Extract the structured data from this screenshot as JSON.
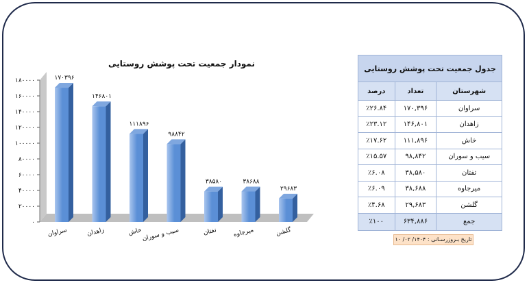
{
  "chart_data": {
    "type": "bar",
    "title": "نمودار جمعیت تحت پوشش روستایی",
    "categories": [
      "سراوان",
      "زاهدان",
      "خاش",
      "سیب و سوران",
      "تفتان",
      "میرجاوه",
      "گلشن"
    ],
    "values": [
      170396,
      146801,
      111896,
      98842,
      38580,
      38688,
      29683
    ],
    "value_labels": [
      "۱۷۰۳۹۶",
      "۱۴۶۸۰۱",
      "۱۱۱۸۹۶",
      "۹۸۸۴۲",
      "۳۸۵۸۰",
      "۳۸۶۸۸",
      "۲۹۶۸۳"
    ],
    "ylim": [
      0,
      180000
    ],
    "yticks": [
      0,
      20000,
      40000,
      60000,
      80000,
      100000,
      120000,
      140000,
      160000,
      180000
    ],
    "ytick_labels": [
      "۰",
      "۲۰۰۰۰",
      "۴۰۰۰۰",
      "۶۰۰۰۰",
      "۸۰۰۰۰",
      "۱۰۰۰۰۰",
      "۱۲۰۰۰۰",
      "۱۴۰۰۰۰",
      "۱۶۰۰۰۰",
      "۱۸۰۰۰۰"
    ],
    "grid": false,
    "colors": {
      "bar_front": "#5b8fd6",
      "bar_light": "#a9c5ee",
      "bar_side": "#34609f",
      "bar_top": "#7fa7df",
      "wall": "#c9c9c9",
      "floor": "#bfbfbf"
    }
  },
  "table": {
    "caption": "جدول جمعیت تحت پوشش روستایی",
    "headers": [
      "شهرستان",
      "تعداد",
      "درصد"
    ],
    "rows": [
      [
        "سراوان",
        "۱۷۰,۳۹۶",
        "٪۲۶.۸۴"
      ],
      [
        "زاهدان",
        "۱۴۶,۸۰۱",
        "٪۲۳.۱۲"
      ],
      [
        "خاش",
        "۱۱۱,۸۹۶",
        "٪۱۷.۶۲"
      ],
      [
        "سیب و سوران",
        "۹۸,۸۴۲",
        "٪۱۵.۵۷"
      ],
      [
        "تفتان",
        "۳۸,۵۸۰",
        "٪۶.۰۸"
      ],
      [
        "میرجاوه",
        "۳۸,۶۸۸",
        "٪۶.۰۹"
      ],
      [
        "گلشن",
        "۲۹,۶۸۳",
        "٪۴.۶۸"
      ]
    ],
    "total": [
      "جمع",
      "۶۳۴,۸۸۶",
      "٪۱۰۰"
    ]
  },
  "update_date": "تاریخ بـروزرسـانی : ۱۴۰۴/ ۰۲/ ۱۰"
}
